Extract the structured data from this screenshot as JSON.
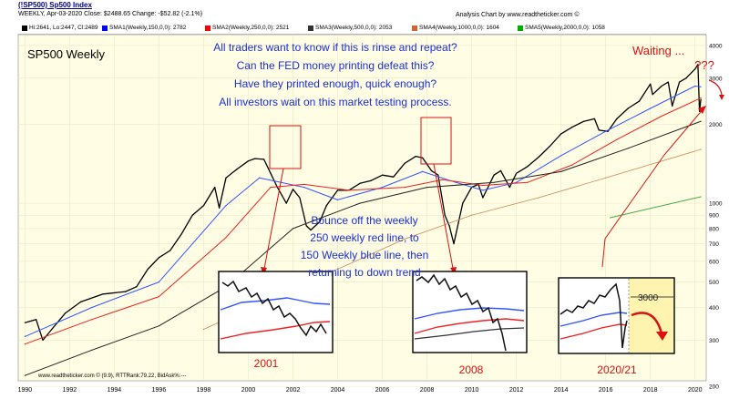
{
  "header": {
    "symbol": "(!SP500) Sp500 Index",
    "info": "WEEKLY, Apr-03-2020  Close: $2488.65  Change: -$52.82 (-2.1%)",
    "source": "Analysis Chart by www.readtheticker.com ©"
  },
  "legend": [
    {
      "label": "Hi:2641, Lo:2447, Cl:2489",
      "color": "#000000"
    },
    {
      "label": "SMA1(Weekly,150,0,0): 2782",
      "color": "#0000ff"
    },
    {
      "label": "SMA2(Weekly,250,0,0): 2521",
      "color": "#ff0000"
    },
    {
      "label": "SMA3(Weekly,500,0,0): 2053",
      "color": "#333333"
    },
    {
      "label": "SMA4(Weekly,1000,0,0): 1604",
      "color": "#cc6633"
    },
    {
      "label": "SMA5(Weekly,2000,0,0): 1058",
      "color": "#00aa00"
    }
  ],
  "annotations": {
    "chart_label": "SP500 Weekly",
    "question_lines": [
      "All traders want to know if this is rinse and repeat?",
      "Can the FED money printing defeat this?",
      "Have they printed enough, quick enough?",
      "All investors wait on this market testing process."
    ],
    "bounce_lines": [
      "Bounce off the weekly",
      "250 weekly red line, to",
      "150 Weekly blue line, then",
      "returning to down trend"
    ],
    "waiting": "Waiting ...",
    "qmarks": "???",
    "inset_labels": [
      "2001",
      "2008",
      "2020/21"
    ],
    "inset_level": "3000",
    "footer": "www.readtheticker.com © (9.9), RTTRank:79.22, BidAsk%:---"
  },
  "colors": {
    "plot_bg": "#fffde3",
    "price": "#000000",
    "sma150": "#3355ff",
    "sma250": "#ee2222",
    "sma500": "#222222",
    "sma1000": "#cc8855",
    "sma2000": "#44aa44",
    "annotation_blue": "#1a2fd8",
    "annotation_red": "#dd1111"
  },
  "chart_data": {
    "type": "line",
    "title": "(!SP500) Sp500 Index",
    "xlabel": "",
    "ylabel": "",
    "y_scale": "log",
    "ylim": [
      210,
      4400
    ],
    "xlim": [
      1989.7,
      2020.5
    ],
    "x_ticks": [
      "1990",
      "1992",
      "1994",
      "1996",
      "1998",
      "2000",
      "2002",
      "2004",
      "2006",
      "2008",
      "2010",
      "2012",
      "2014",
      "2016",
      "2018",
      "2020"
    ],
    "y_ticks": [
      200,
      300,
      400,
      500,
      600,
      700,
      800,
      900,
      1000,
      2000,
      3000,
      4000
    ],
    "series": [
      {
        "name": "Hi:2641, Lo:2447, Cl:2489",
        "x": [
          1990.0,
          1990.5,
          1990.8,
          1991.2,
          1991.8,
          1992.5,
          1993.5,
          1994.5,
          1995.0,
          1995.5,
          1996.0,
          1996.5,
          1997.0,
          1997.5,
          1998.0,
          1998.5,
          1998.7,
          1999.0,
          1999.5,
          2000.0,
          2000.3,
          2000.7,
          2001.0,
          2001.3,
          2001.7,
          2002.0,
          2002.3,
          2002.6,
          2002.8,
          2003.2,
          2003.5,
          2004.0,
          2004.5,
          2005.0,
          2005.5,
          2006.0,
          2006.5,
          2007.0,
          2007.5,
          2007.8,
          2008.2,
          2008.5,
          2008.8,
          2009.0,
          2009.2,
          2009.6,
          2010.0,
          2010.3,
          2010.5,
          2011.0,
          2011.3,
          2011.7,
          2012.0,
          2012.5,
          2013.0,
          2013.5,
          2014.0,
          2014.5,
          2015.0,
          2015.5,
          2015.7,
          2016.1,
          2016.5,
          2017.0,
          2017.5,
          2018.0,
          2018.1,
          2018.5,
          2018.8,
          2018.98,
          2019.3,
          2019.6,
          2020.0,
          2020.13,
          2020.2,
          2020.26
        ],
        "values": [
          350,
          360,
          300,
          330,
          380,
          420,
          450,
          460,
          480,
          560,
          620,
          660,
          760,
          900,
          980,
          1150,
          960,
          1250,
          1350,
          1450,
          1480,
          1470,
          1300,
          1150,
          1000,
          1130,
          1050,
          820,
          790,
          850,
          980,
          1120,
          1120,
          1190,
          1220,
          1280,
          1260,
          1420,
          1510,
          1490,
          1330,
          1280,
          900,
          820,
          700,
          1000,
          1150,
          1180,
          1050,
          1280,
          1330,
          1150,
          1300,
          1380,
          1500,
          1650,
          1840,
          1950,
          2050,
          2100,
          1900,
          1880,
          2100,
          2300,
          2450,
          2850,
          2600,
          2800,
          2900,
          2350,
          2900,
          3000,
          3250,
          3380,
          2240,
          2489
        ]
      },
      {
        "name": "SMA1(Weekly,150,0,0): 2782",
        "x": [
          1990,
          1993,
          1996,
          1999,
          2000.5,
          2002.5,
          2004,
          2006,
          2007.8,
          2009.3,
          2010.5,
          2012,
          2014,
          2016,
          2018,
          2020,
          2020.26
        ],
        "values": [
          310,
          400,
          500,
          980,
          1250,
          1150,
          1030,
          1150,
          1320,
          1200,
          1120,
          1200,
          1520,
          1880,
          2300,
          2800,
          2782
        ]
      },
      {
        "name": "SMA2(Weekly,250,0,0): 2521",
        "x": [
          1990,
          1993,
          1996,
          1999,
          2001,
          2002.5,
          2004.5,
          2007,
          2008.7,
          2010.5,
          2012.5,
          2014.5,
          2016.5,
          2018.5,
          2020.26
        ],
        "values": [
          290,
          360,
          440,
          740,
          1150,
          1180,
          1120,
          1150,
          1230,
          1170,
          1200,
          1400,
          1750,
          2150,
          2521
        ]
      },
      {
        "name": "SMA3(Weekly,500,0,0): 2053",
        "x": [
          1990,
          1993,
          1996,
          1999,
          2002,
          2005,
          2008,
          2011,
          2014,
          2017,
          2020.26
        ],
        "values": [
          220,
          275,
          340,
          480,
          800,
          1000,
          1150,
          1200,
          1320,
          1620,
          2053
        ]
      },
      {
        "name": "SMA4(Weekly,1000,0,0): 1604",
        "x": [
          1998,
          2001,
          2004,
          2007,
          2010,
          2013,
          2016,
          2020.26
        ],
        "values": [
          330,
          430,
          560,
          730,
          900,
          1050,
          1250,
          1604
        ]
      },
      {
        "name": "SMA5(Weekly,2000,0,0): 1058",
        "x": [
          2016.2,
          2020.26
        ],
        "values": [
          880,
          1058
        ]
      }
    ]
  }
}
